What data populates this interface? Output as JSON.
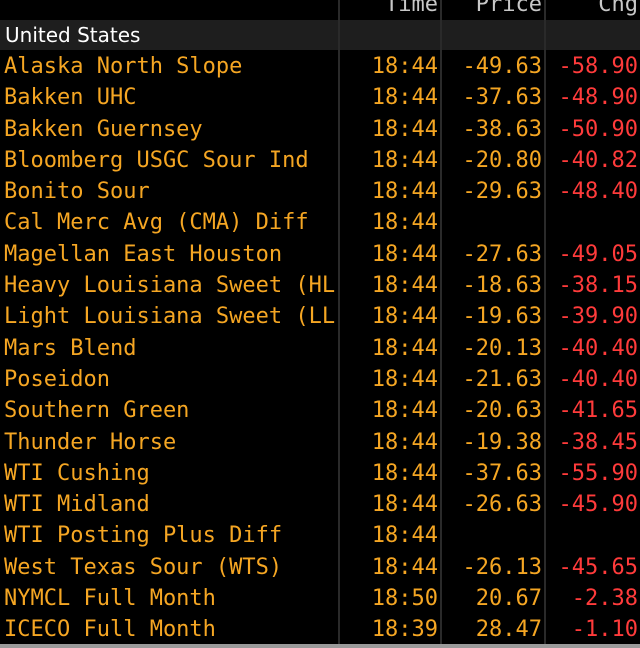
{
  "header": {
    "time_label": "Time",
    "price_label": "Price",
    "chg_label": "Chg"
  },
  "section": {
    "label": "United States"
  },
  "rows": [
    {
      "name": "Alaska North Slope",
      "time": "18:44",
      "price": "-49.63",
      "chg": "-58.90"
    },
    {
      "name": "Bakken UHC",
      "time": "18:44",
      "price": "-37.63",
      "chg": "-48.90"
    },
    {
      "name": "Bakken Guernsey",
      "time": "18:44",
      "price": "-38.63",
      "chg": "-50.90"
    },
    {
      "name": "Bloomberg USGC Sour Ind",
      "time": "18:44",
      "price": "-20.80",
      "chg": "-40.82"
    },
    {
      "name": "Bonito Sour",
      "time": "18:44",
      "price": "-29.63",
      "chg": "-48.40"
    },
    {
      "name": "Cal Merc Avg (CMA) Diff",
      "time": "18:44",
      "price": "",
      "chg": ""
    },
    {
      "name": "Magellan East Houston",
      "time": "18:44",
      "price": "-27.63",
      "chg": "-49.05"
    },
    {
      "name": "Heavy Louisiana Sweet (HLS)",
      "time": "18:44",
      "price": "-18.63",
      "chg": "-38.15"
    },
    {
      "name": "Light Louisiana Sweet (LLS)",
      "time": "18:44",
      "price": "-19.63",
      "chg": "-39.90"
    },
    {
      "name": "Mars Blend",
      "time": "18:44",
      "price": "-20.13",
      "chg": "-40.40"
    },
    {
      "name": "Poseidon",
      "time": "18:44",
      "price": "-21.63",
      "chg": "-40.40"
    },
    {
      "name": "Southern Green",
      "time": "18:44",
      "price": "-20.63",
      "chg": "-41.65"
    },
    {
      "name": "Thunder Horse",
      "time": "18:44",
      "price": "-19.38",
      "chg": "-38.45"
    },
    {
      "name": "WTI Cushing",
      "time": "18:44",
      "price": "-37.63",
      "chg": "-55.90"
    },
    {
      "name": "WTI Midland",
      "time": "18:44",
      "price": "-26.63",
      "chg": "-45.90"
    },
    {
      "name": "WTI Posting Plus Diff",
      "time": "18:44",
      "price": "",
      "chg": ""
    },
    {
      "name": "West Texas Sour (WTS)",
      "time": "18:44",
      "price": "-26.13",
      "chg": "-45.65"
    },
    {
      "name": "NYMCL Full Month",
      "time": "18:50",
      "price": "20.67",
      "chg": "-2.38"
    },
    {
      "name": "ICECO Full Month",
      "time": "18:39",
      "price": "28.47",
      "chg": "-1.10"
    }
  ],
  "colors": {
    "background": "#000000",
    "name_text": "#f5a623",
    "change_negative": "#ff3b3b",
    "section_bg": "#1e1e1e"
  }
}
